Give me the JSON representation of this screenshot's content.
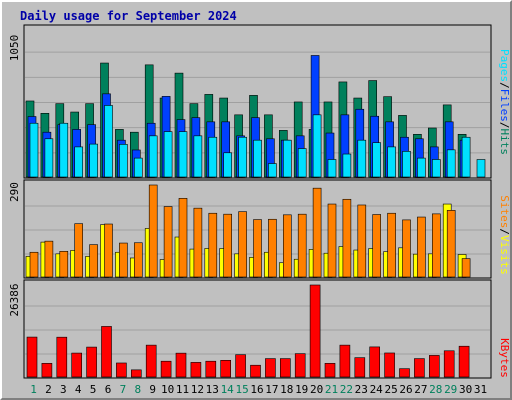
{
  "title": "Daily usage for September 2024",
  "colors": {
    "background": "#c0c0c0",
    "plot_background": "#c0c0c0",
    "gridline": "#a0a0a0",
    "title": "#0000a8",
    "hits": "#00805c",
    "files": "#0040ff",
    "pages": "#00e0ff",
    "visits": "#ffff00",
    "sites": "#ff8000",
    "kbytes": "#ff0000",
    "weekend_label": "#00805c",
    "weekday_label": "#000000"
  },
  "legend": {
    "panel1": [
      "Pages",
      "/",
      "Files",
      "/",
      "Hits"
    ],
    "panel2": [
      "Sites",
      "/",
      "Visits"
    ],
    "panel3": [
      "KBytes"
    ]
  },
  "chart_data": [
    {
      "type": "bar",
      "panel": "hits-files-pages",
      "y_max_label": "1050",
      "ylim": [
        0,
        1050
      ],
      "grid": true,
      "categories": [
        "1",
        "2",
        "3",
        "4",
        "5",
        "6",
        "7",
        "8",
        "9",
        "10",
        "11",
        "12",
        "13",
        "14",
        "15",
        "16",
        "17",
        "18",
        "19",
        "20",
        "21",
        "22",
        "23",
        "24",
        "25",
        "26",
        "27",
        "28",
        "29",
        "30",
        "31"
      ],
      "weekend_days": [
        1,
        7,
        8,
        14,
        15,
        21,
        22,
        28,
        29
      ],
      "series": [
        {
          "name": "Hits",
          "values": [
            543,
            455,
            524,
            464,
            524,
            814,
            340,
            320,
            801,
            564,
            742,
            524,
            590,
            564,
            444,
            583,
            444,
            333,
            536,
            340,
            536,
            679,
            564,
            689,
            574,
            440,
            305,
            350,
            515,
            305,
            0
          ]
        },
        {
          "name": "Files",
          "values": [
            432,
            320,
            374,
            340,
            374,
            594,
            263,
            193,
            384,
            576,
            410,
            424,
            394,
            394,
            294,
            424,
            273,
            263,
            294,
            868,
            314,
            444,
            484,
            434,
            394,
            284,
            273,
            215,
            394,
            263,
            0
          ]
        },
        {
          "name": "Pages",
          "values": [
            384,
            273,
            384,
            215,
            235,
            511,
            233,
            135,
            294,
            324,
            324,
            294,
            284,
            173,
            284,
            263,
            96,
            263,
            203,
            444,
            125,
            164,
            263,
            245,
            215,
            183,
            135,
            125,
            194,
            284,
            125
          ]
        }
      ]
    },
    {
      "type": "bar",
      "panel": "visits-sites",
      "y_max_label": "290",
      "ylim": [
        0,
        290
      ],
      "grid": true,
      "categories": [
        "1",
        "2",
        "3",
        "4",
        "5",
        "6",
        "7",
        "8",
        "9",
        "10",
        "11",
        "12",
        "13",
        "14",
        "15",
        "16",
        "17",
        "18",
        "19",
        "20",
        "21",
        "22",
        "23",
        "24",
        "25",
        "26",
        "27",
        "28",
        "29",
        "30",
        "31"
      ],
      "series": [
        {
          "name": "Visits",
          "values": [
            65,
            110,
            73,
            84,
            65,
            165,
            78,
            60,
            153,
            55,
            126,
            88,
            90,
            90,
            73,
            62,
            78,
            45,
            56,
            87,
            75,
            96,
            85,
            90,
            80,
            92,
            72,
            73,
            230,
            71,
            0
          ]
        },
        {
          "name": "Sites",
          "values": [
            78,
            113,
            81,
            168,
            102,
            167,
            107,
            108,
            290,
            222,
            248,
            217,
            201,
            198,
            206,
            181,
            182,
            196,
            198,
            280,
            230,
            245,
            227,
            197,
            201,
            180,
            189,
            199,
            210,
            58,
            0
          ]
        }
      ]
    },
    {
      "type": "bar",
      "panel": "kbytes",
      "y_max_label": "26386",
      "ylim": [
        0,
        26386
      ],
      "grid": true,
      "categories": [
        "1",
        "2",
        "3",
        "4",
        "5",
        "6",
        "7",
        "8",
        "9",
        "10",
        "11",
        "12",
        "13",
        "14",
        "15",
        "16",
        "17",
        "18",
        "19",
        "20",
        "21",
        "22",
        "23",
        "24",
        "25",
        "26",
        "27",
        "28",
        "29",
        "30",
        "31"
      ],
      "series": [
        {
          "name": "KBytes",
          "values": [
            11450,
            3920,
            11420,
            6860,
            8580,
            14500,
            4020,
            2050,
            9140,
            4530,
            6840,
            4190,
            4530,
            4790,
            6390,
            3380,
            5280,
            5280,
            6700,
            26386,
            3920,
            9140,
            5550,
            8630,
            6890,
            2390,
            5280,
            6190,
            7520,
            8830,
            0
          ]
        }
      ]
    }
  ]
}
